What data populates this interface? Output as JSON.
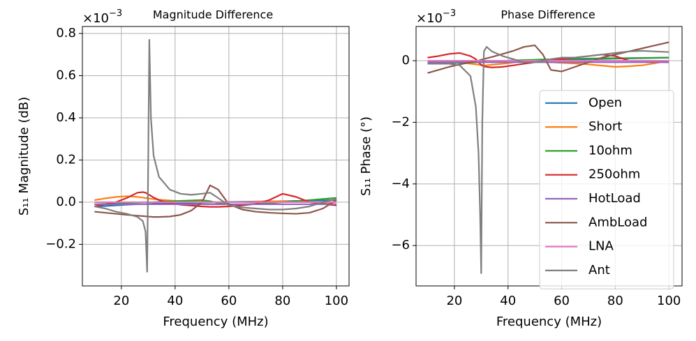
{
  "chart_data": [
    {
      "type": "line",
      "title": "Magnitude Difference",
      "offset_text": {
        "base": "×10",
        "exponent": "−3"
      },
      "xlabel": "Frequency (MHz)",
      "ylabel": "S₁₁ Magnitude (dB)",
      "xlim": [
        5.5,
        104.7
      ],
      "ylim": [
        -0.397,
        0.833
      ],
      "xticks": [
        20,
        40,
        60,
        80,
        100
      ],
      "yticks": [
        {
          "value": -0.2,
          "label": "−0.2"
        },
        {
          "value": 0,
          "label": "0.0"
        },
        0.2,
        0.4,
        0.6,
        0.8
      ],
      "grid": true,
      "x": [
        10,
        14,
        18,
        22,
        26,
        28,
        29,
        29.6,
        30,
        30.4,
        31,
        32,
        34,
        38,
        42,
        46,
        50,
        53,
        56,
        60,
        65,
        70,
        75,
        80,
        85,
        90,
        95,
        100
      ],
      "series": [
        {
          "name": "Open",
          "color": "#1f77b4",
          "values": [
            -0.02,
            -0.018,
            -0.015,
            -0.012,
            -0.01,
            -0.009,
            -0.009,
            -0.008,
            -0.008,
            -0.008,
            -0.008,
            -0.007,
            -0.006,
            -0.005,
            -0.004,
            -0.003,
            -0.002,
            -0.001,
            0,
            0.001,
            0.002,
            0.003,
            0.004,
            0.005,
            0.006,
            0.007,
            0.008,
            0.01
          ]
        },
        {
          "name": "Short",
          "color": "#ff7f0e",
          "values": [
            0.01,
            0.018,
            0.025,
            0.028,
            0.025,
            0.022,
            0.02,
            0.019,
            0.018,
            0.017,
            0.016,
            0.015,
            0.012,
            0.008,
            0.005,
            0.003,
            0.002,
            0.001,
            0,
            0,
            0,
            0.002,
            0.004,
            0.005,
            0.003,
            0,
            -0.005,
            -0.01
          ]
        },
        {
          "name": "10ohm",
          "color": "#2ca02c",
          "values": [
            -0.01,
            -0.008,
            -0.006,
            -0.004,
            -0.002,
            0,
            0,
            0,
            0,
            0,
            0,
            0,
            0.002,
            0.004,
            0.006,
            0.008,
            0.01,
            0.005,
            -0.005,
            -0.01,
            -0.01,
            -0.008,
            -0.005,
            0,
            0.005,
            0.01,
            0.015,
            0.02
          ]
        },
        {
          "name": "250ohm",
          "color": "#d62728",
          "values": [
            -0.02,
            -0.01,
            0.0,
            0.02,
            0.045,
            0.048,
            0.045,
            0.04,
            0.037,
            0.034,
            0.03,
            0.022,
            0.01,
            -0.005,
            -0.012,
            -0.016,
            -0.02,
            -0.022,
            -0.022,
            -0.02,
            -0.015,
            -0.008,
            0.01,
            0.04,
            0.025,
            0.0,
            -0.008,
            -0.015
          ]
        },
        {
          "name": "HotLoad",
          "color": "#9467bd",
          "values": [
            -0.01,
            -0.01,
            -0.01,
            -0.01,
            -0.01,
            -0.01,
            -0.01,
            -0.01,
            -0.01,
            -0.01,
            -0.01,
            -0.01,
            -0.01,
            -0.01,
            -0.01,
            -0.01,
            -0.01,
            -0.01,
            -0.01,
            -0.01,
            -0.01,
            -0.01,
            -0.01,
            -0.01,
            -0.01,
            -0.01,
            -0.01,
            -0.01
          ]
        },
        {
          "name": "AmbLoad",
          "color": "#8c564b",
          "values": [
            -0.045,
            -0.05,
            -0.055,
            -0.06,
            -0.064,
            -0.066,
            -0.067,
            -0.068,
            -0.068,
            -0.069,
            -0.069,
            -0.07,
            -0.07,
            -0.068,
            -0.06,
            -0.04,
            0.0,
            0.08,
            0.06,
            -0.01,
            -0.035,
            -0.045,
            -0.05,
            -0.053,
            -0.055,
            -0.05,
            -0.03,
            0.01
          ]
        },
        {
          "name": "LNA",
          "color": "#e377c2",
          "values": [
            0,
            0,
            0,
            0,
            0,
            0,
            0,
            0,
            0,
            0,
            0,
            0,
            0,
            0,
            0,
            0,
            0,
            0,
            0,
            0,
            0,
            0,
            0,
            0,
            0,
            0,
            0,
            0
          ]
        },
        {
          "name": "Ant",
          "color": "#7f7f7f",
          "values": [
            -0.02,
            -0.03,
            -0.045,
            -0.055,
            -0.07,
            -0.09,
            -0.14,
            -0.33,
            0.2,
            0.77,
            0.4,
            0.22,
            0.12,
            0.06,
            0.04,
            0.035,
            0.04,
            0.045,
            0.02,
            -0.015,
            -0.025,
            -0.03,
            -0.035,
            -0.035,
            -0.03,
            -0.02,
            0.0,
            0.015
          ]
        }
      ]
    },
    {
      "type": "line",
      "title": "Phase Difference",
      "offset_text": {
        "base": "×10",
        "exponent": "−3"
      },
      "xlabel": "Frequency (MHz)",
      "ylabel": "S₁₁ Phase (°)",
      "xlim": [
        5.7,
        104.9
      ],
      "ylim": [
        -7.31,
        1.11
      ],
      "xticks": [
        20,
        40,
        60,
        80,
        100
      ],
      "yticks": [
        {
          "value": -6,
          "label": "−6"
        },
        {
          "value": -4,
          "label": "−4"
        },
        {
          "value": -2,
          "label": "−2"
        },
        0
      ],
      "grid": true,
      "legend": "center right",
      "x": [
        10,
        14,
        18,
        22,
        26,
        28,
        29,
        29.6,
        30,
        30.4,
        31,
        32,
        34,
        38,
        42,
        46,
        50,
        53,
        56,
        60,
        65,
        70,
        75,
        80,
        85,
        90,
        95,
        100
      ],
      "series": [
        {
          "name": "Open",
          "color": "#1f77b4",
          "values": [
            -0.05,
            -0.043,
            -0.037,
            -0.03,
            -0.023,
            -0.02,
            -0.018,
            -0.017,
            -0.017,
            -0.016,
            -0.015,
            -0.013,
            -0.01,
            -0.003,
            0.003,
            0.01,
            0.017,
            0.022,
            0.027,
            0.033,
            0.042,
            0.05,
            0.058,
            0.067,
            0.075,
            0.083,
            0.092,
            0.1
          ]
        },
        {
          "name": "Short",
          "color": "#ff7f0e",
          "values": [
            0,
            -0.02,
            -0.04,
            -0.06,
            -0.1,
            -0.12,
            -0.13,
            -0.14,
            -0.14,
            -0.14,
            -0.15,
            -0.15,
            -0.13,
            -0.1,
            -0.06,
            -0.02,
            0,
            -0.02,
            -0.05,
            -0.07,
            -0.09,
            -0.12,
            -0.16,
            -0.2,
            -0.18,
            -0.15,
            -0.08,
            0
          ]
        },
        {
          "name": "10ohm",
          "color": "#2ca02c",
          "values": [
            -0.1,
            -0.09,
            -0.08,
            -0.07,
            -0.06,
            -0.055,
            -0.05,
            -0.05,
            -0.05,
            -0.05,
            -0.045,
            -0.04,
            -0.03,
            -0.01,
            0.01,
            0.02,
            0.03,
            0.04,
            0.045,
            0.05,
            0.06,
            0.07,
            0.075,
            0.08,
            0.085,
            0.09,
            0.095,
            0.1
          ]
        },
        {
          "name": "250ohm",
          "color": "#d62728",
          "values": [
            0.1,
            0.15,
            0.22,
            0.25,
            0.15,
            0.05,
            -0.05,
            -0.1,
            -0.14,
            -0.16,
            -0.18,
            -0.2,
            -0.22,
            -0.2,
            -0.15,
            -0.1,
            -0.05,
            0,
            0.02,
            0.05,
            0.1,
            0.15,
            0.2,
            0.15,
            0.0,
            -0.03,
            -0.04,
            -0.05
          ]
        },
        {
          "name": "HotLoad",
          "color": "#9467bd",
          "values": [
            -0.05,
            -0.05,
            -0.05,
            -0.05,
            -0.05,
            -0.05,
            -0.05,
            -0.05,
            -0.05,
            -0.05,
            -0.05,
            -0.05,
            -0.05,
            -0.05,
            -0.05,
            -0.05,
            -0.05,
            -0.05,
            -0.05,
            -0.05,
            -0.05,
            -0.05,
            -0.05,
            -0.05,
            -0.05,
            -0.05,
            -0.05,
            -0.05
          ]
        },
        {
          "name": "AmbLoad",
          "color": "#8c564b",
          "values": [
            -0.4,
            -0.3,
            -0.2,
            -0.12,
            -0.05,
            -0.02,
            0,
            0.02,
            0.03,
            0.04,
            0.05,
            0.08,
            0.12,
            0.22,
            0.32,
            0.45,
            0.5,
            0.2,
            -0.3,
            -0.35,
            -0.2,
            -0.05,
            0.1,
            0.2,
            0.3,
            0.4,
            0.5,
            0.6
          ]
        },
        {
          "name": "LNA",
          "color": "#e377c2",
          "values": [
            0,
            0,
            0,
            0,
            0,
            0,
            0,
            0,
            0,
            0,
            0,
            0,
            0,
            0,
            0,
            0,
            0,
            0,
            0,
            0,
            0,
            0,
            0,
            0,
            0,
            0,
            0,
            0
          ]
        },
        {
          "name": "Ant",
          "color": "#7f7f7f",
          "values": [
            -0.1,
            -0.1,
            -0.1,
            -0.15,
            -0.5,
            -1.5,
            -3,
            -5,
            -6.9,
            -2,
            0.3,
            0.45,
            0.3,
            0.15,
            0.05,
            -0.05,
            -0.05,
            0,
            0.05,
            0.1,
            0.1,
            0.15,
            0.2,
            0.25,
            0.3,
            0.32,
            0.3,
            0.28
          ]
        }
      ]
    }
  ]
}
